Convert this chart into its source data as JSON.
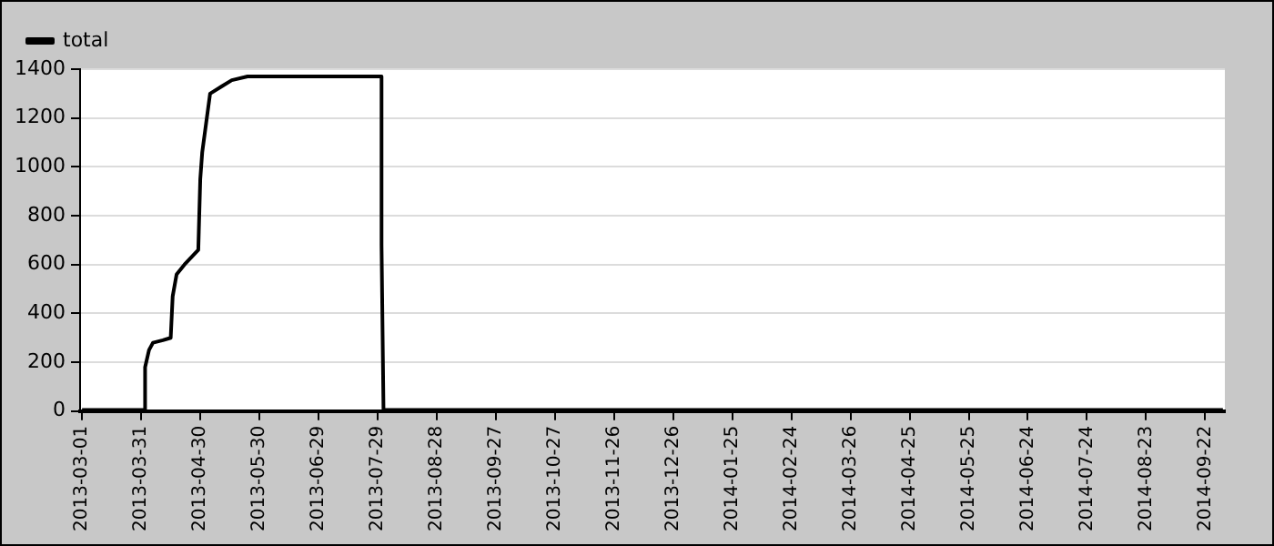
{
  "chart_data": {
    "type": "line",
    "x": [
      "2013-03-01",
      "2013-04-01",
      "2013-04-02",
      "2013-04-02",
      "2013-04-04",
      "2013-04-06",
      "2013-04-11",
      "2013-04-15",
      "2013-04-16",
      "2013-04-18",
      "2013-04-22",
      "2013-04-29",
      "2013-04-30",
      "2013-05-01",
      "2013-05-03",
      "2013-05-05",
      "2013-05-11",
      "2013-05-16",
      "2013-05-24",
      "2013-07-31",
      "2013-07-31",
      "2013-08-01",
      "2014-10-01"
    ],
    "series": [
      {
        "name": "total",
        "color": "#000000",
        "values": [
          5,
          5,
          5,
          180,
          250,
          280,
          290,
          300,
          470,
          560,
          600,
          660,
          950,
          1060,
          1180,
          1300,
          1330,
          1355,
          1370,
          1370,
          680,
          5,
          5
        ]
      }
    ],
    "xlim": [
      "2013-02-28",
      "2014-10-02"
    ],
    "xticks": [
      "2013-03-01",
      "2013-03-31",
      "2013-04-30",
      "2013-05-30",
      "2013-06-29",
      "2013-07-29",
      "2013-08-28",
      "2013-09-27",
      "2013-10-27",
      "2013-11-26",
      "2013-12-26",
      "2014-01-25",
      "2014-02-24",
      "2014-03-26",
      "2014-04-25",
      "2014-05-25",
      "2014-06-24",
      "2014-07-24",
      "2014-08-23",
      "2014-09-22"
    ],
    "ylim": [
      0,
      1400
    ],
    "yticks": [
      0,
      200,
      400,
      600,
      800,
      1000,
      1200,
      1400
    ],
    "grid": "y",
    "legend": "top left",
    "marker": "none",
    "line_style": "solid"
  }
}
